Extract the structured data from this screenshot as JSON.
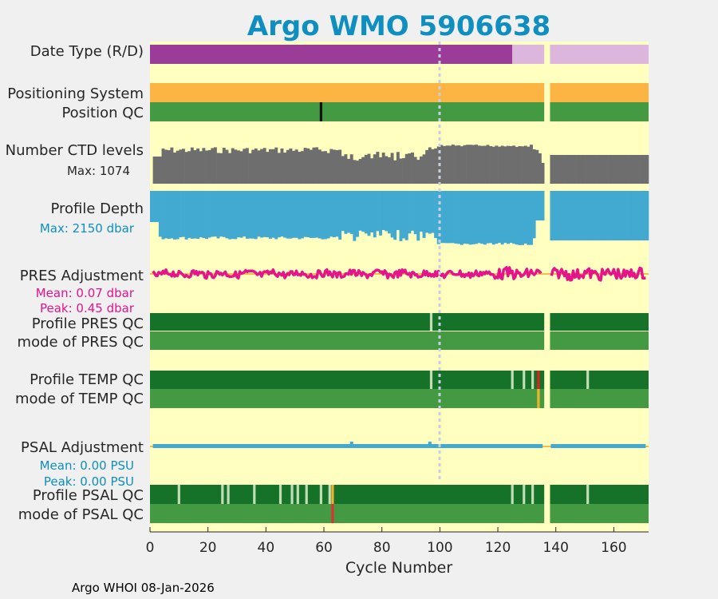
{
  "chart_data": {
    "type": "timeline-panels",
    "title": "Argo WMO 5906638",
    "xlabel": "Cycle Number",
    "xlim": [
      0,
      172
    ],
    "xticks": [
      0,
      20,
      40,
      60,
      80,
      100,
      120,
      140,
      160
    ],
    "gap_cycles": [
      136,
      137
    ],
    "reference_cycle": 100,
    "rows": {
      "date_type": {
        "label": "Date Type (R/D)",
        "segments": [
          {
            "from": 0,
            "to": 125,
            "color": "#9b3d98",
            "meaning": "R"
          },
          {
            "from": 125,
            "to": 172,
            "color": "#dcb6dc",
            "meaning": "D"
          }
        ]
      },
      "positioning": {
        "label": "Positioning System",
        "segments": [
          {
            "from": 0,
            "to": 172,
            "color": "#fcb442"
          }
        ]
      },
      "position_qc": {
        "label": "Position QC",
        "base_color": "#439a43",
        "marks": [
          {
            "cycle": 59,
            "color": "#111111"
          }
        ]
      },
      "ctd_levels": {
        "label": "Number CTD levels",
        "max_label": "Max: 1074",
        "max": 1074,
        "color": "#6e6e6e"
      },
      "profile_depth": {
        "label": "Profile Depth",
        "max_label": "Max: 2150 dbar",
        "max": 2150,
        "color": "#42a9d0"
      },
      "pres_adjustment": {
        "label": "PRES Adjustment",
        "mean_label": "Mean: 0.07 dbar",
        "peak_label": "Peak: 0.45 dbar",
        "color": "#e6148c",
        "ref_color": "#f5a623"
      },
      "profile_pres_qc": {
        "label": "Profile PRES QC",
        "base_color": "#167229",
        "marks": [
          {
            "cycle": 97,
            "color": "#c2dcb4"
          }
        ]
      },
      "mode_pres_qc": {
        "label": "mode of PRES QC",
        "base_color": "#439a43",
        "marks": []
      },
      "profile_temp_qc": {
        "label": "Profile TEMP QC",
        "base_color": "#167229",
        "marks": [
          {
            "cycle": 97,
            "color": "#c2dcb4"
          },
          {
            "cycle": 125,
            "color": "#c2dcb4"
          },
          {
            "cycle": 129,
            "color": "#c2dcb4"
          },
          {
            "cycle": 132,
            "color": "#c2dcb4"
          },
          {
            "cycle": 134,
            "color": "#e32020"
          },
          {
            "cycle": 151,
            "color": "#c2dcb4"
          }
        ]
      },
      "mode_temp_qc": {
        "label": "mode of TEMP QC",
        "base_color": "#439a43",
        "marks": [
          {
            "cycle": 134,
            "color": "#f0b428"
          }
        ]
      },
      "psal_adjustment": {
        "label": "PSAL Adjustment",
        "mean_label": "Mean: 0.00 PSU",
        "peak_label": "Peak: 0.00 PSU",
        "color": "#42a9d0",
        "ref_color": "#f5a623"
      },
      "profile_psal_qc": {
        "label": "Profile PSAL QC",
        "base_color": "#167229",
        "marks": [
          {
            "cycle": 10,
            "color": "#c2dcb4"
          },
          {
            "cycle": 25,
            "color": "#c2dcb4"
          },
          {
            "cycle": 27,
            "color": "#c2dcb4"
          },
          {
            "cycle": 36,
            "color": "#c2dcb4"
          },
          {
            "cycle": 45,
            "color": "#c2dcb4"
          },
          {
            "cycle": 49,
            "color": "#c2dcb4"
          },
          {
            "cycle": 51,
            "color": "#c2dcb4"
          },
          {
            "cycle": 54,
            "color": "#c2dcb4"
          },
          {
            "cycle": 59,
            "color": "#c2dcb4"
          },
          {
            "cycle": 62,
            "color": "#c2dcb4"
          },
          {
            "cycle": 63,
            "color": "#f0b428"
          },
          {
            "cycle": 125,
            "color": "#c2dcb4"
          },
          {
            "cycle": 129,
            "color": "#c2dcb4"
          },
          {
            "cycle": 132,
            "color": "#c2dcb4"
          },
          {
            "cycle": 151,
            "color": "#c2dcb4"
          }
        ]
      },
      "mode_psal_qc": {
        "label": "mode of PSAL QC",
        "base_color": "#439a43",
        "marks": [
          {
            "cycle": 63,
            "color": "#e03030"
          }
        ]
      }
    }
  },
  "footer": "Argo WHOI 08-Jan-2026",
  "colors": {
    "plot_background": "#ffffc0",
    "figure_background": "#f0f0f0",
    "title": "#0e8fc0",
    "pres_text": "#e6148c",
    "psal_text": "#0e8fc0"
  }
}
